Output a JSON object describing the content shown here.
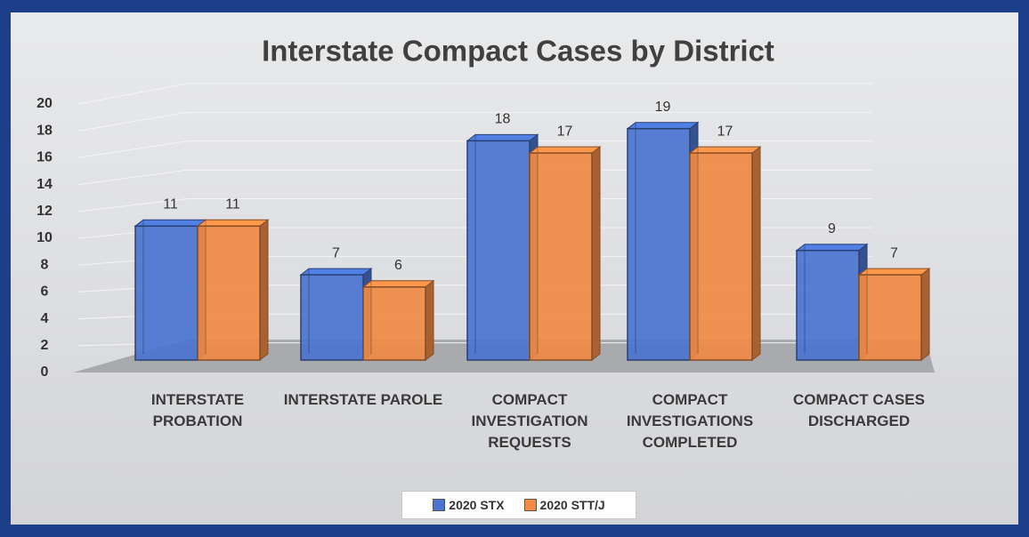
{
  "chart_data": {
    "type": "bar3d",
    "title": "Interstate Compact Cases by District",
    "categories": [
      "INTERSTATE PROBATION",
      "INTERSTATE PAROLE",
      "COMPACT INVESTIGATION REQUESTS",
      "COMPACT INVESTIGATIONS COMPLETED",
      "COMPACT CASES DISCHARGED"
    ],
    "series": [
      {
        "name": "2020 STX",
        "color": "#4a74cf",
        "values": [
          11,
          7,
          18,
          19,
          9
        ]
      },
      {
        "name": "2020 STT/J",
        "color": "#f08a44",
        "values": [
          11,
          6,
          17,
          17,
          7
        ]
      }
    ],
    "ylim": [
      0,
      20
    ],
    "yticks": [
      0,
      2,
      4,
      6,
      8,
      10,
      12,
      14,
      16,
      18,
      20
    ],
    "grid": true,
    "legend": "bottom"
  }
}
